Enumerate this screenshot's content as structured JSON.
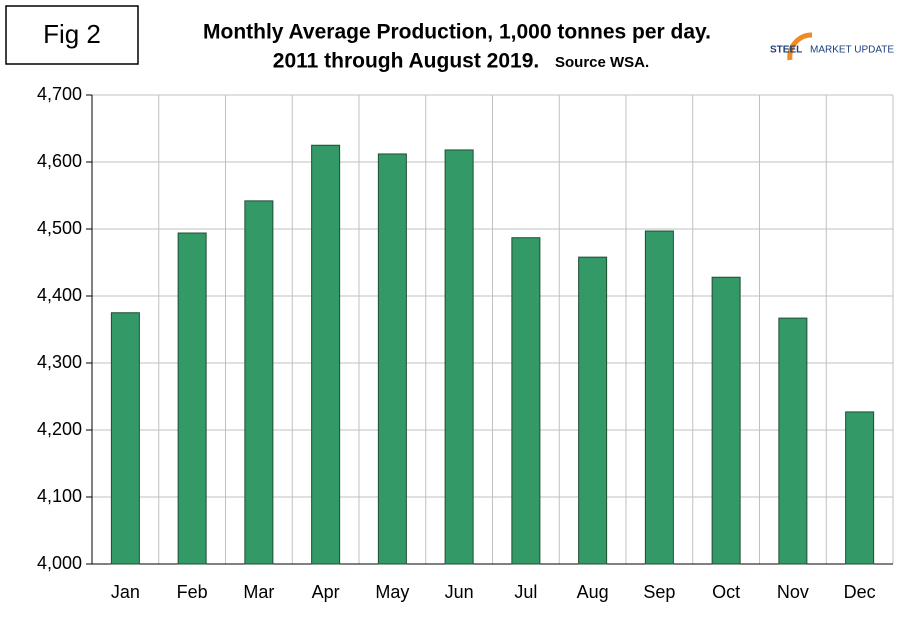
{
  "chart_data": {
    "type": "bar",
    "figure_label": "Fig 2",
    "title": [
      "Monthly Average Production, 1,000 tonnes per day.",
      "2011 through August 2019."
    ],
    "source": "Source WSA.",
    "logo": [
      "STEEL",
      "MARKET UPDATE"
    ],
    "categories": [
      "Jan",
      "Feb",
      "Mar",
      "Apr",
      "May",
      "Jun",
      "Jul",
      "Aug",
      "Sep",
      "Oct",
      "Nov",
      "Dec"
    ],
    "values": [
      4375,
      4494,
      4542,
      4625,
      4612,
      4618,
      4487,
      4458,
      4497,
      4428,
      4367,
      4227
    ],
    "color": "#339966",
    "ylim": [
      4000,
      4700
    ],
    "yticks": [
      {
        "value": 4000,
        "label": "4,000"
      },
      {
        "value": 4100,
        "label": "4,100"
      },
      {
        "value": 4200,
        "label": "4,200"
      },
      {
        "value": 4300,
        "label": "4,300"
      },
      {
        "value": 4400,
        "label": "4,400"
      },
      {
        "value": 4500,
        "label": "4,500"
      },
      {
        "value": 4600,
        "label": "4,600"
      },
      {
        "value": 4700,
        "label": "4,700"
      }
    ],
    "grid": true
  }
}
